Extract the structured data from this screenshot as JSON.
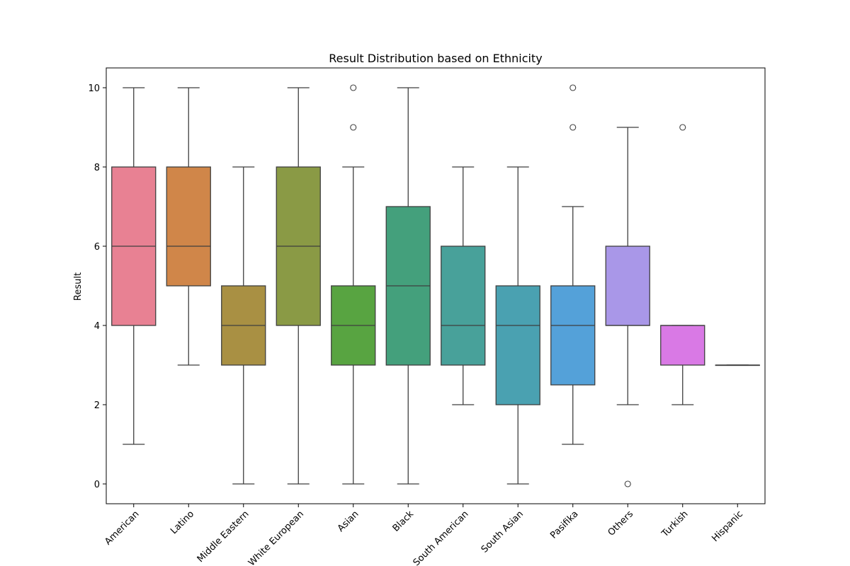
{
  "chart_data": {
    "type": "box",
    "title": "Result Distribution based on Ethnicity",
    "xlabel": "",
    "ylabel": "Result",
    "ylim": [
      -0.5,
      10.5
    ],
    "yticks": [
      0,
      2,
      4,
      6,
      8,
      10
    ],
    "grid": false,
    "legend": "none",
    "categories": [
      "American",
      "Latino",
      "Middle Eastern",
      "White European",
      "Asian",
      "Black",
      "South American",
      "South Asian",
      "Pasifika",
      "Others",
      "Turkish",
      "Hispanic"
    ],
    "boxes": [
      {
        "category": "American",
        "whisker_low": 1,
        "q1": 4,
        "median": 6,
        "q3": 8,
        "whisker_high": 10,
        "outliers": [],
        "color": "#e88193"
      },
      {
        "category": "Latino",
        "whisker_low": 3,
        "q1": 5,
        "median": 6,
        "q3": 8,
        "whisker_high": 10,
        "outliers": [],
        "color": "#d08649"
      },
      {
        "category": "Middle Eastern",
        "whisker_low": 0,
        "q1": 3,
        "median": 4,
        "q3": 5,
        "whisker_high": 8,
        "outliers": [],
        "color": "#a99043"
      },
      {
        "category": "White European",
        "whisker_low": 0,
        "q1": 4,
        "median": 6,
        "q3": 8,
        "whisker_high": 10,
        "outliers": [],
        "color": "#8a9a45"
      },
      {
        "category": "Asian",
        "whisker_low": 0,
        "q1": 3,
        "median": 4,
        "q3": 5,
        "whisker_high": 8,
        "outliers": [
          9,
          10
        ],
        "color": "#58a441"
      },
      {
        "category": "Black",
        "whisker_low": 0,
        "q1": 3,
        "median": 5,
        "q3": 7,
        "whisker_high": 10,
        "outliers": [],
        "color": "#44a07c"
      },
      {
        "category": "South American",
        "whisker_low": 2,
        "q1": 3,
        "median": 4,
        "q3": 6,
        "whisker_high": 8,
        "outliers": [],
        "color": "#48a19a"
      },
      {
        "category": "South Asian",
        "whisker_low": 0,
        "q1": 2,
        "median": 4,
        "q3": 5,
        "whisker_high": 8,
        "outliers": [],
        "color": "#4aa1b1"
      },
      {
        "category": "Pasifika",
        "whisker_low": 1,
        "q1": 2.5,
        "median": 4,
        "q3": 5,
        "whisker_high": 7,
        "outliers": [
          9,
          10
        ],
        "color": "#54a1d9"
      },
      {
        "category": "Others",
        "whisker_low": 2,
        "q1": 4,
        "median": 4,
        "q3": 6,
        "whisker_high": 9,
        "outliers": [
          0
        ],
        "color": "#a997e8"
      },
      {
        "category": "Turkish",
        "whisker_low": 2,
        "q1": 3,
        "median": 4,
        "q3": 4,
        "whisker_high": 4,
        "outliers": [
          9
        ],
        "color": "#d979e5"
      },
      {
        "category": "Hispanic",
        "whisker_low": 3,
        "q1": 3,
        "median": 3,
        "q3": 3,
        "whisker_high": 3,
        "outliers": [],
        "color": "#e680be"
      }
    ]
  }
}
